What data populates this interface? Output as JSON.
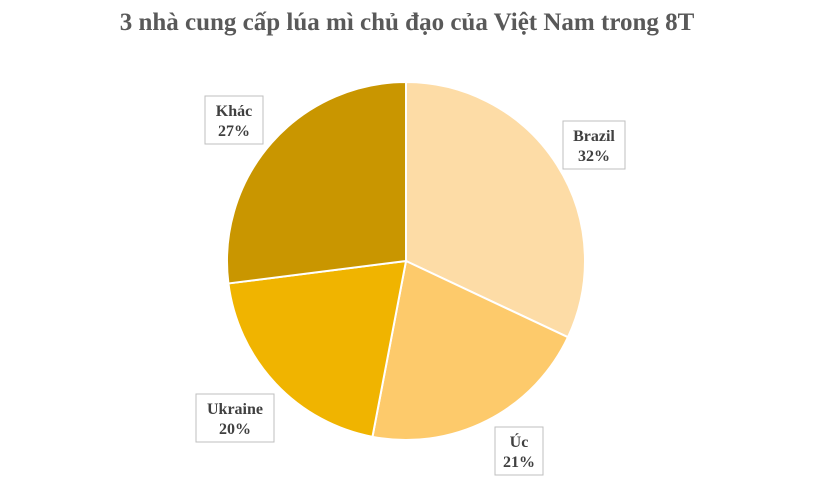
{
  "chart_data": {
    "type": "pie",
    "title": "3 nhà cung cấp lúa mì chủ đạo của Việt Nam trong 8T",
    "unit": "%",
    "slices": [
      {
        "label": "Brazil",
        "value": 32,
        "pct_label": "32%",
        "color": "#FDDCA6"
      },
      {
        "label": "Úc",
        "value": 21,
        "pct_label": "21%",
        "color": "#FDCA6B"
      },
      {
        "label": "Ukraine",
        "value": 20,
        "pct_label": "20%",
        "color": "#F0B400"
      },
      {
        "label": "Khác",
        "value": 27,
        "pct_label": "27%",
        "color": "#C99600"
      }
    ],
    "start_angle_deg": 0,
    "direction": "clockwise",
    "legend": "none"
  }
}
